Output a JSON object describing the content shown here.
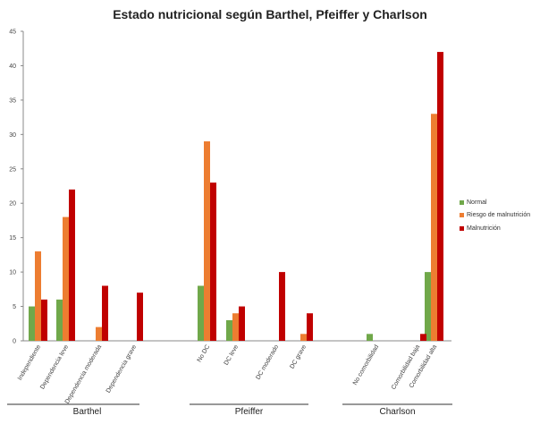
{
  "chart_data": {
    "type": "bar",
    "title": "Estado nutricional según Barthel, Pfeiffer y Charlson",
    "ylim": [
      0,
      45
    ],
    "yticks": [
      0,
      5,
      10,
      15,
      20,
      25,
      30,
      35,
      40,
      45
    ],
    "grid": false,
    "legend_position": "right",
    "categories": [
      "Independiente",
      "Dependencia leve",
      "Dependencia moderada",
      "Dependencia grave",
      "No DC",
      "DC leve",
      "DC moderado",
      "DC grave",
      "No comorbilidad",
      "Comorbilidad baja",
      "Comorbilidad alta"
    ],
    "groups": [
      {
        "name": "Barthel",
        "categories": [
          "Independiente",
          "Dependencia leve",
          "Dependencia moderada",
          "Dependencia grave"
        ]
      },
      {
        "name": "Pfeiffer",
        "categories": [
          "No DC",
          "DC leve",
          "DC moderado",
          "DC grave"
        ]
      },
      {
        "name": "Charlson",
        "categories": [
          "No comorbilidad",
          "Comorbilidad baja",
          "Comorbilidad alta"
        ]
      }
    ],
    "series": [
      {
        "name": "Normal",
        "color": "#70a84a",
        "values": [
          5,
          6,
          0,
          0,
          8,
          3,
          0,
          0,
          1,
          0,
          10
        ]
      },
      {
        "name": "Riesgo de malnutrición",
        "color": "#ed7d31",
        "values": [
          13,
          18,
          2,
          0,
          29,
          4,
          0,
          1,
          0,
          0,
          33
        ]
      },
      {
        "name": "Malnutrición",
        "color": "#c00000",
        "values": [
          6,
          22,
          8,
          7,
          23,
          5,
          10,
          4,
          0,
          1,
          42
        ]
      }
    ]
  }
}
